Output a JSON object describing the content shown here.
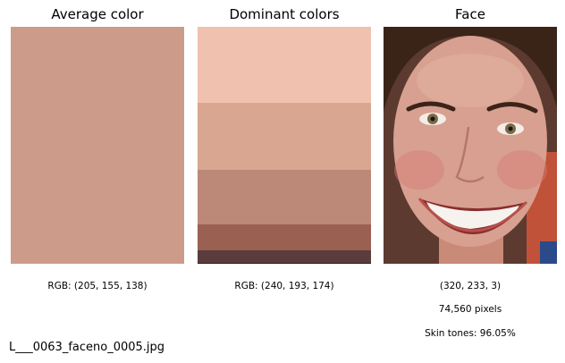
{
  "panels": {
    "average": {
      "title": "Average color",
      "color": "#cd9b8a",
      "caption": "RGB: (205, 155, 138)"
    },
    "dominant": {
      "title": "Dominant colors",
      "caption": "RGB: (240, 193, 174)",
      "bands": [
        {
          "color": "#f0c1ae",
          "share": 0.32
        },
        {
          "color": "#d8a691",
          "share": 0.285
        },
        {
          "color": "#bc8877",
          "share": 0.23
        },
        {
          "color": "#9a6052",
          "share": 0.11
        },
        {
          "color": "#5a3c3c",
          "share": 0.05
        },
        {
          "color": "#2a1a1a",
          "share": 0.005
        }
      ]
    },
    "face": {
      "title": "Face",
      "shape": "(320, 233, 3)",
      "pixels": "74,560 pixels",
      "skin": "Skin tones: 96.05%"
    }
  },
  "filename": "L___0063_faceno_0005.jpg"
}
